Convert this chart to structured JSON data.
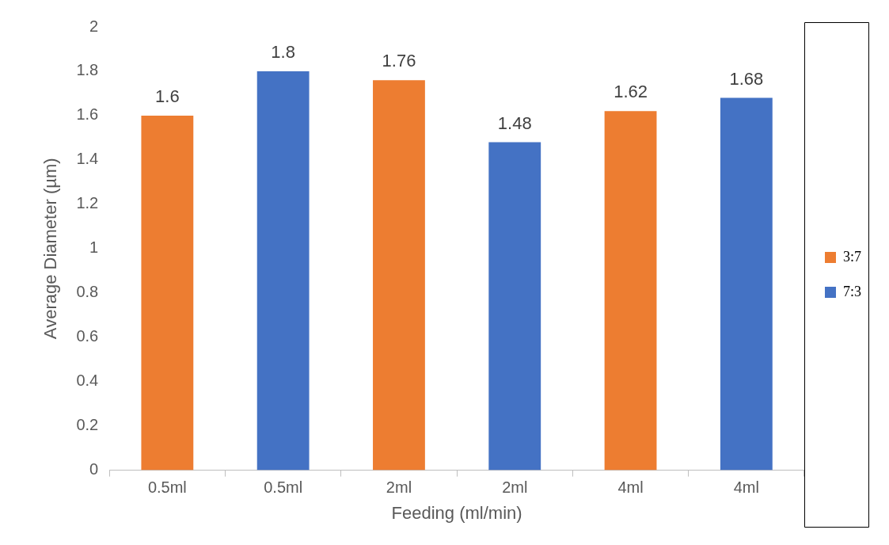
{
  "chart_data": {
    "type": "bar",
    "xlabel": "Feeding (ml/min)",
    "ylabel": "Average Diameter (µm)",
    "categories": [
      "0.5ml",
      "0.5ml",
      "2ml",
      "2ml",
      "4ml",
      "4ml"
    ],
    "series": [
      {
        "name": "3:7",
        "color": "#ed7d31",
        "values": [
          1.6,
          null,
          1.76,
          null,
          1.62,
          null
        ]
      },
      {
        "name": "7:3",
        "color": "#4472c4",
        "values": [
          null,
          1.8,
          null,
          1.48,
          null,
          1.68
        ]
      }
    ],
    "ylim": [
      0,
      2
    ],
    "yticks": [
      0,
      0.2,
      0.4,
      0.6,
      0.8,
      1,
      1.2,
      1.4,
      1.6,
      1.8,
      2
    ],
    "grid": false,
    "legend": "right",
    "data_labels": true
  }
}
